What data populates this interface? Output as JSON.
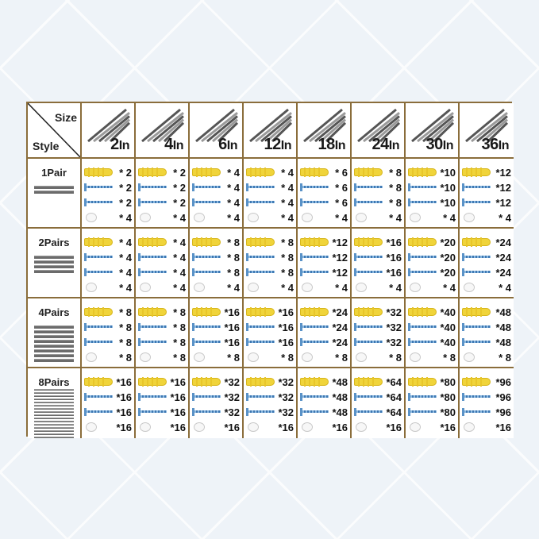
{
  "corner": {
    "size_label": "Size",
    "style_label": "Style"
  },
  "sizes": [
    {
      "num": "2",
      "unit": "In"
    },
    {
      "num": "4",
      "unit": "In"
    },
    {
      "num": "6",
      "unit": "In"
    },
    {
      "num": "12",
      "unit": "In"
    },
    {
      "num": "18",
      "unit": "In"
    },
    {
      "num": "24",
      "unit": "In"
    },
    {
      "num": "30",
      "unit": "In"
    },
    {
      "num": "36",
      "unit": "In"
    }
  ],
  "rows": [
    {
      "label": "1Pair",
      "bars": 2,
      "cells": [
        [
          "* 2",
          "* 2",
          "* 2",
          "* 4"
        ],
        [
          "* 2",
          "* 2",
          "* 2",
          "* 4"
        ],
        [
          "* 4",
          "* 4",
          "* 4",
          "* 4"
        ],
        [
          "* 4",
          "* 4",
          "* 4",
          "* 4"
        ],
        [
          "* 6",
          "* 6",
          "* 6",
          "* 4"
        ],
        [
          "* 8",
          "* 8",
          "* 8",
          "* 4"
        ],
        [
          "*10",
          "*10",
          "*10",
          "* 4"
        ],
        [
          "*12",
          "*12",
          "*12",
          "* 4"
        ]
      ]
    },
    {
      "label": "2Pairs",
      "bars": 4,
      "cells": [
        [
          "* 4",
          "* 4",
          "* 4",
          "* 4"
        ],
        [
          "* 4",
          "* 4",
          "* 4",
          "* 4"
        ],
        [
          "* 8",
          "* 8",
          "* 8",
          "* 4"
        ],
        [
          "* 8",
          "* 8",
          "* 8",
          "* 4"
        ],
        [
          "*12",
          "*12",
          "*12",
          "* 4"
        ],
        [
          "*16",
          "*16",
          "*16",
          "* 4"
        ],
        [
          "*20",
          "*20",
          "*20",
          "* 4"
        ],
        [
          "*24",
          "*24",
          "*24",
          "* 4"
        ]
      ]
    },
    {
      "label": "4Pairs",
      "bars": 8,
      "cells": [
        [
          "* 8",
          "* 8",
          "* 8",
          "* 8"
        ],
        [
          "* 8",
          "* 8",
          "* 8",
          "* 8"
        ],
        [
          "*16",
          "*16",
          "*16",
          "* 8"
        ],
        [
          "*16",
          "*16",
          "*16",
          "* 8"
        ],
        [
          "*24",
          "*24",
          "*24",
          "* 8"
        ],
        [
          "*32",
          "*32",
          "*32",
          "* 8"
        ],
        [
          "*40",
          "*40",
          "*40",
          "* 8"
        ],
        [
          "*48",
          "*48",
          "*48",
          "* 8"
        ]
      ]
    },
    {
      "label": "8Pairs",
      "bars": 16,
      "cells": [
        [
          "*16",
          "*16",
          "*16",
          "*16"
        ],
        [
          "*16",
          "*16",
          "*16",
          "*16"
        ],
        [
          "*32",
          "*32",
          "*32",
          "*16"
        ],
        [
          "*32",
          "*32",
          "*32",
          "*16"
        ],
        [
          "*48",
          "*48",
          "*48",
          "*16"
        ],
        [
          "*64",
          "*64",
          "*64",
          "*16"
        ],
        [
          "*80",
          "*80",
          "*80",
          "*16"
        ],
        [
          "*96",
          "*96",
          "*96",
          "*16"
        ]
      ]
    }
  ]
}
